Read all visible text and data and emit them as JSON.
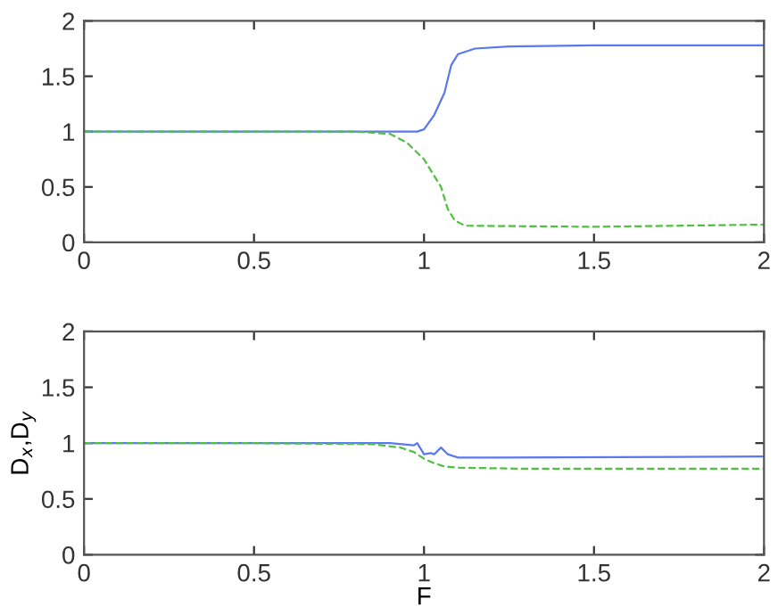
{
  "chart_data": [
    {
      "type": "line",
      "xlim": [
        0,
        2
      ],
      "ylim": [
        0,
        2
      ],
      "xticks": [
        0,
        0.5,
        1,
        1.5,
        2
      ],
      "yticks": [
        0,
        0.5,
        1,
        1.5,
        2
      ],
      "grid": false,
      "series": [
        {
          "color": "#5a78f0",
          "line_style": "solid",
          "x": [
            0,
            0.5,
            0.95,
            0.98,
            1.0,
            1.03,
            1.06,
            1.08,
            1.1,
            1.15,
            1.25,
            1.5,
            2
          ],
          "values": [
            1,
            1,
            1,
            1,
            1.02,
            1.15,
            1.35,
            1.6,
            1.7,
            1.75,
            1.77,
            1.78,
            1.78
          ]
        },
        {
          "color": "#50c040",
          "line_style": "dashed",
          "x": [
            0,
            0.5,
            0.8,
            0.9,
            0.95,
            1.0,
            1.05,
            1.07,
            1.09,
            1.12,
            1.5,
            2
          ],
          "values": [
            1,
            1,
            1,
            0.98,
            0.9,
            0.75,
            0.5,
            0.3,
            0.2,
            0.15,
            0.14,
            0.16
          ]
        }
      ]
    },
    {
      "type": "line",
      "xlim": [
        0,
        2
      ],
      "ylim": [
        0,
        2
      ],
      "xticks": [
        0,
        0.5,
        1,
        1.5,
        2
      ],
      "yticks": [
        0,
        0.5,
        1,
        1.5,
        2
      ],
      "grid": false,
      "xlabel": "F",
      "ylabel": "D$_{x}$,D$_{y}$",
      "series": [
        {
          "color": "#5a78f0",
          "line_style": "solid",
          "x": [
            0,
            0.5,
            0.9,
            0.97,
            0.98,
            1.0,
            1.02,
            1.03,
            1.05,
            1.07,
            1.1,
            1.2,
            2
          ],
          "values": [
            1,
            1,
            1,
            0.98,
            1.0,
            0.9,
            0.91,
            0.9,
            0.96,
            0.9,
            0.87,
            0.87,
            0.88
          ]
        },
        {
          "color": "#50c040",
          "line_style": "dashed",
          "x": [
            0,
            0.5,
            0.85,
            0.93,
            0.97,
            1.0,
            1.03,
            1.06,
            1.1,
            1.3,
            2
          ],
          "values": [
            1,
            1,
            0.99,
            0.96,
            0.92,
            0.86,
            0.82,
            0.79,
            0.78,
            0.77,
            0.77
          ]
        }
      ]
    }
  ]
}
